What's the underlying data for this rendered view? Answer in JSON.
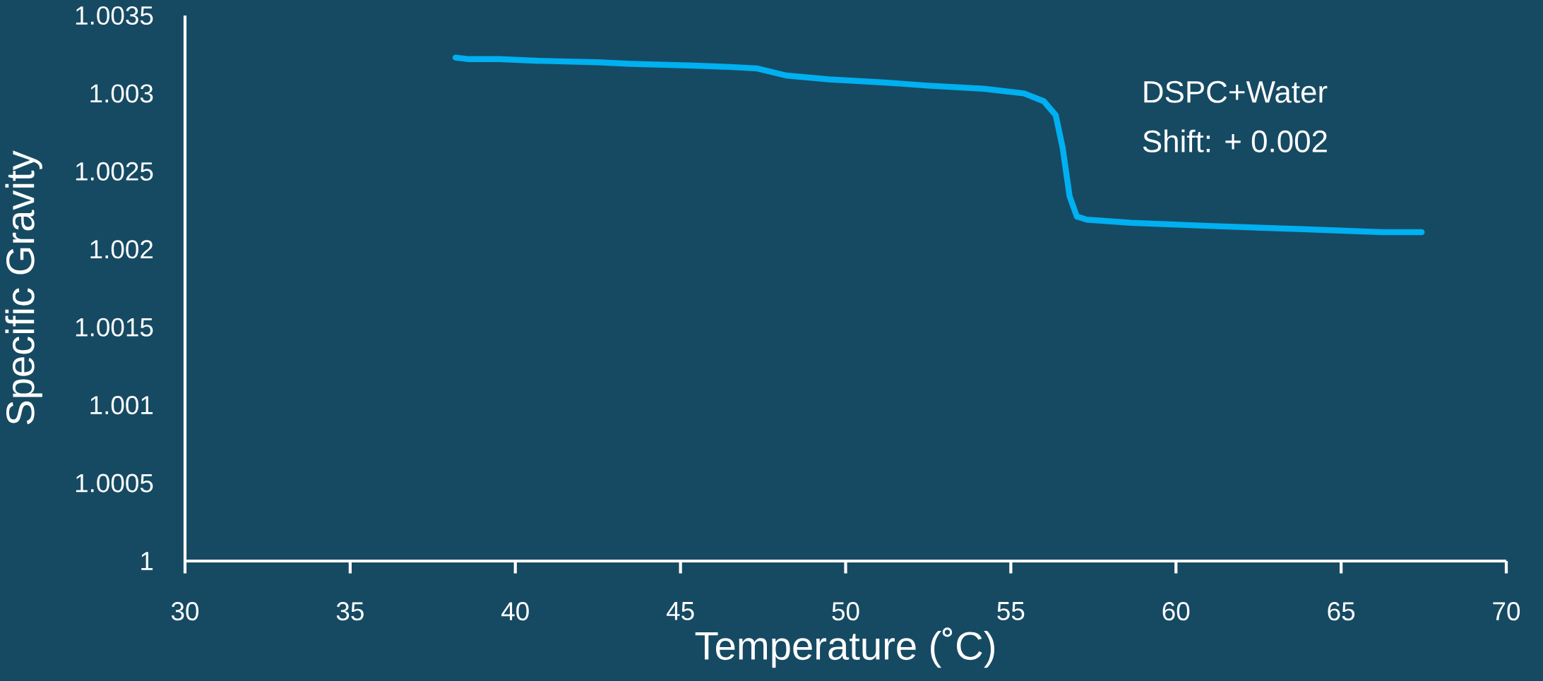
{
  "chart_data": {
    "type": "line",
    "xlabel": "Temperature (˚C)",
    "ylabel": "Specific Gravity",
    "annotations": [
      "DSPC+Water",
      "Shift:  + 0.002"
    ],
    "series": [
      {
        "color": "#00b0f0",
        "x": [
          38.19,
          38.6,
          39.5,
          40.6,
          42.5,
          43.5,
          45.25,
          46.5,
          47.33,
          48.2,
          49.5,
          51.2,
          52.5,
          54.18,
          55.4,
          56.0,
          56.36,
          56.57,
          56.78,
          57.0,
          57.3,
          58.65,
          61.0,
          63.7,
          66.25,
          67.44
        ],
        "values": [
          1.00323,
          1.00322,
          1.00322,
          1.00321,
          1.0032,
          1.00319,
          1.00318,
          1.00317,
          1.00316,
          1.003115,
          1.00309,
          1.00307,
          1.00305,
          1.00303,
          1.003,
          1.00295,
          1.00286,
          1.00265,
          1.00234,
          1.00221,
          1.00219,
          1.00217,
          1.00215,
          1.00213,
          1.00211,
          1.00211
        ]
      }
    ],
    "xlim": [
      30,
      70
    ],
    "ylim": [
      1,
      1.0035
    ],
    "xticks": [
      30,
      35,
      40,
      45,
      50,
      55,
      60,
      65,
      70
    ],
    "yticks": [
      1,
      1.0005,
      1.001,
      1.0015,
      1.002,
      1.0025,
      1.003,
      1.0035
    ],
    "grid": false,
    "legend": false,
    "marker": "none",
    "line_style": "solid"
  }
}
